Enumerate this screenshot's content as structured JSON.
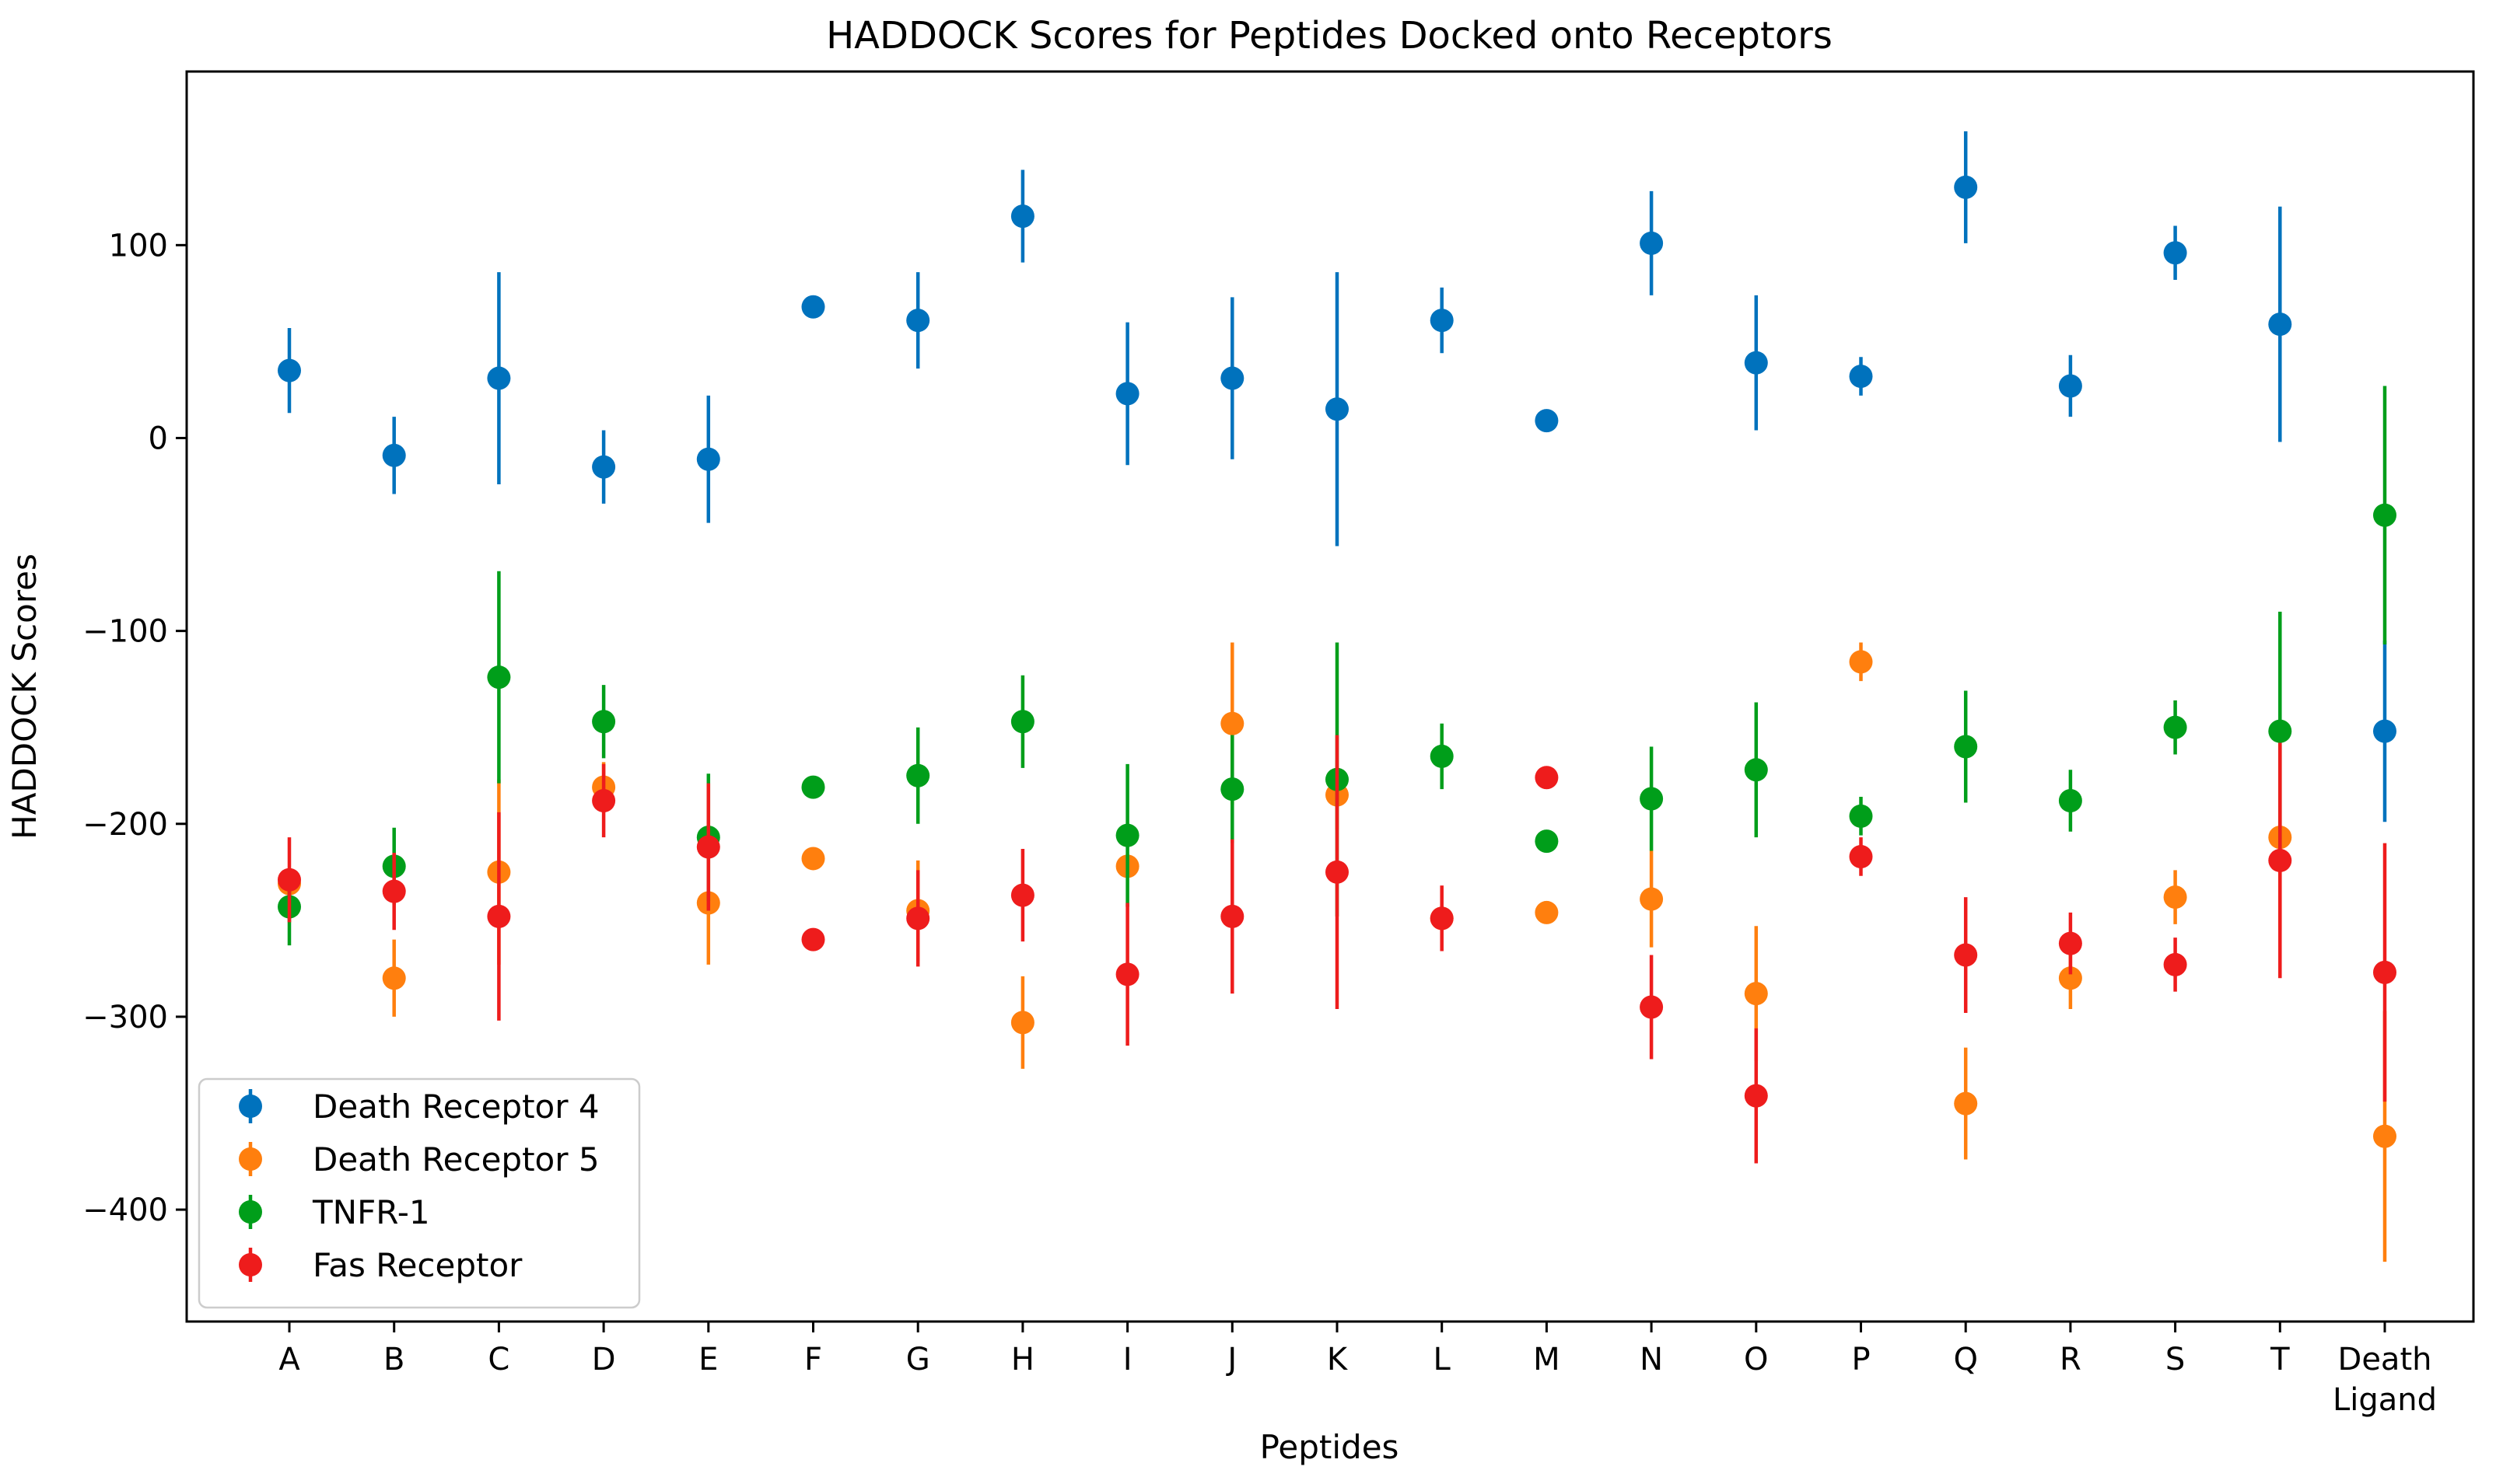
{
  "chart_data": {
    "type": "scatter",
    "title": "HADDOCK Scores for Peptides Docked onto Receptors",
    "xlabel": "Peptides",
    "ylabel": "HADDOCK Scores",
    "ylim": [
      -458,
      190
    ],
    "yticks": [
      100,
      0,
      -100,
      -200,
      -300,
      -400
    ],
    "ytick_labels": [
      "100",
      "0",
      "−100",
      "−200",
      "−300",
      "−400"
    ],
    "grid": false,
    "legend_position": "lower-left",
    "categories": [
      "A",
      "B",
      "C",
      "D",
      "E",
      "F",
      "G",
      "H",
      "I",
      "J",
      "K",
      "L",
      "M",
      "N",
      "O",
      "P",
      "Q",
      "R",
      "S",
      "T",
      "Death Ligand"
    ],
    "category_lines": [
      [
        "A"
      ],
      [
        "B"
      ],
      [
        "C"
      ],
      [
        "D"
      ],
      [
        "E"
      ],
      [
        "F"
      ],
      [
        "G"
      ],
      [
        "H"
      ],
      [
        "I"
      ],
      [
        "J"
      ],
      [
        "K"
      ],
      [
        "L"
      ],
      [
        "M"
      ],
      [
        "N"
      ],
      [
        "O"
      ],
      [
        "P"
      ],
      [
        "Q"
      ],
      [
        "R"
      ],
      [
        "S"
      ],
      [
        "T"
      ],
      [
        "Death",
        "Ligand"
      ]
    ],
    "series": [
      {
        "name": "Death Receptor 4",
        "color": "#0072BD",
        "values": [
          35,
          -9,
          31,
          -15,
          -11,
          68,
          61,
          115,
          23,
          31,
          15,
          61,
          9,
          101,
          39,
          32,
          130,
          27,
          96,
          59,
          -152
        ],
        "errors": [
          22,
          20,
          55,
          19,
          33,
          0,
          25,
          24,
          37,
          42,
          71,
          17,
          0,
          27,
          35,
          10,
          29,
          16,
          14,
          61,
          47
        ]
      },
      {
        "name": "Death Receptor 5",
        "color": "#FF7F0E",
        "values": [
          -231,
          -280,
          -225,
          -181,
          -241,
          -218,
          -245,
          -303,
          -222,
          -148,
          -185,
          -249,
          -246,
          -239,
          -288,
          -116,
          -345,
          -280,
          -238,
          -207,
          -362
        ],
        "errors": [
          5,
          20,
          48,
          13,
          32,
          0,
          26,
          24,
          0,
          42,
          18,
          0,
          0,
          25,
          35,
          10,
          29,
          16,
          14,
          48,
          65
        ]
      },
      {
        "name": "TNFR-1",
        "color": "#009E1A",
        "values": [
          -243,
          -222,
          -124,
          -147,
          -207,
          -181,
          -175,
          -147,
          -206,
          -182,
          -177,
          -165,
          -209,
          -187,
          -172,
          -196,
          -160,
          -188,
          -150,
          -152,
          -40
        ],
        "errors": [
          20,
          20,
          55,
          19,
          33,
          0,
          25,
          24,
          37,
          28,
          71,
          17,
          0,
          27,
          35,
          10,
          29,
          16,
          14,
          62,
          67
        ]
      },
      {
        "name": "Fas Receptor",
        "color": "#EE1C1C",
        "values": [
          -229,
          -235,
          -248,
          -188,
          -212,
          -260,
          -249,
          -237,
          -278,
          -248,
          -225,
          -249,
          -176,
          -295,
          -341,
          -217,
          -268,
          -262,
          -273,
          -219,
          -277
        ],
        "errors": [
          22,
          20,
          54,
          19,
          33,
          0,
          25,
          24,
          37,
          40,
          71,
          17,
          0,
          27,
          35,
          10,
          30,
          16,
          14,
          61,
          67
        ]
      }
    ]
  }
}
